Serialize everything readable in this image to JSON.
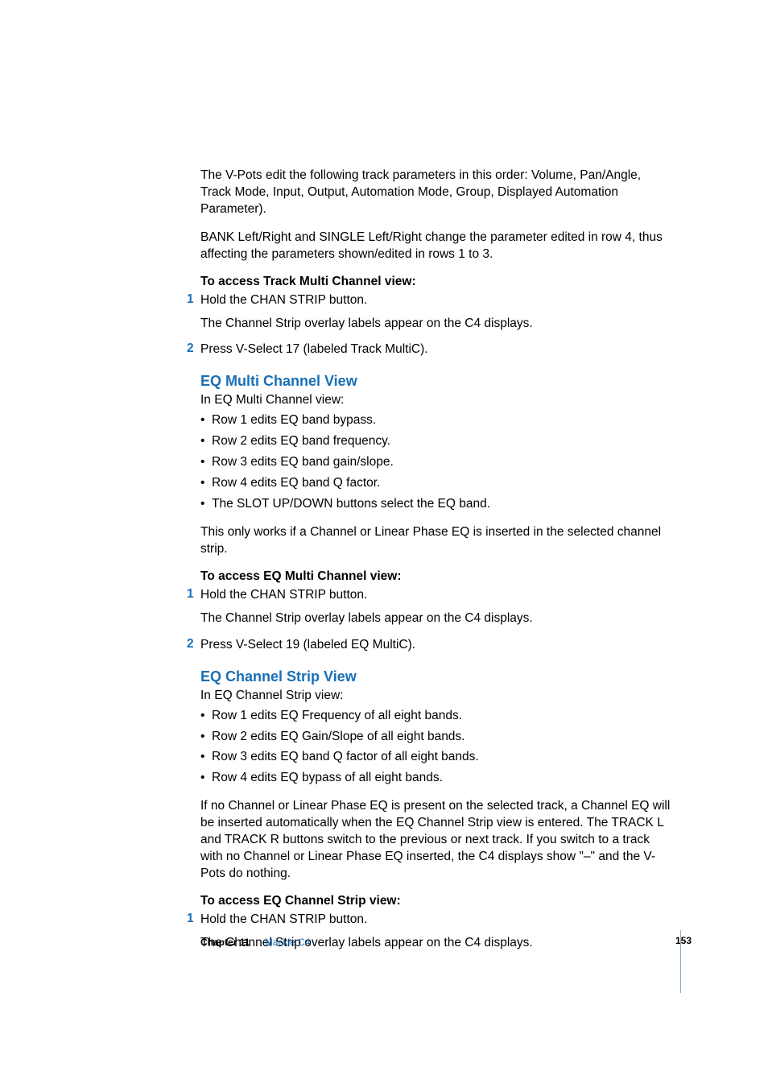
{
  "colors": {
    "accent": "#1a6fb6",
    "text": "#000000",
    "rule": "#8aa9c7",
    "background": "#ffffff"
  },
  "typography": {
    "body_fontsize_pt": 11,
    "heading_fontsize_pt": 14,
    "footer_fontsize_pt": 9,
    "font_family": "Myriad Pro / Helvetica Neue"
  },
  "paragraphs": {
    "p1": "The V-Pots edit the following track parameters in this order:  Volume, Pan/Angle, Track Mode, Input, Output, Automation Mode, Group, Displayed Automation Parameter).",
    "p2": "BANK Left/Right and SINGLE Left/Right change the parameter edited in row 4, thus affecting the parameters shown/edited in rows 1 to 3."
  },
  "section_track": {
    "heading": "To access Track Multi Channel view:",
    "steps": [
      {
        "num": "1",
        "text": "Hold the CHAN STRIP button.",
        "desc": "The Channel Strip overlay labels appear on the C4 displays."
      },
      {
        "num": "2",
        "text": "Press V-Select 17 (labeled Track MultiC)."
      }
    ]
  },
  "section_eqmulti": {
    "title": "EQ Multi Channel View",
    "intro": "In EQ Multi Channel view:",
    "bullets": [
      "Row 1 edits EQ band bypass.",
      "Row 2 edits EQ band frequency.",
      "Row 3 edits EQ band gain/slope.",
      "Row 4 edits EQ band Q factor.",
      "The SLOT UP/DOWN buttons select the EQ band."
    ],
    "note": "This only works if a Channel or Linear Phase EQ is inserted in the selected channel strip.",
    "access_heading": "To access EQ Multi Channel view:",
    "steps": [
      {
        "num": "1",
        "text": "Hold the CHAN STRIP button.",
        "desc": "The Channel Strip overlay labels appear on the C4 displays."
      },
      {
        "num": "2",
        "text": "Press V-Select 19 (labeled EQ MultiC)."
      }
    ]
  },
  "section_eqstrip": {
    "title": "EQ Channel Strip View",
    "intro": "In EQ Channel Strip view:",
    "bullets": [
      "Row 1 edits EQ Frequency of all eight bands.",
      "Row 2 edits EQ Gain/Slope of all eight bands.",
      "Row 3 edits EQ band Q factor of all eight bands.",
      "Row 4 edits EQ bypass of all eight bands."
    ],
    "note": "If no Channel or Linear Phase EQ is present on the selected track, a Channel EQ will be inserted automatically when the EQ Channel Strip view is entered. The TRACK L and TRACK R buttons switch to the previous or next track. If you switch to a track with no Channel or Linear Phase EQ inserted, the C4 displays show \"–\" and the V-Pots do nothing.",
    "access_heading": "To access EQ Channel Strip view:",
    "steps": [
      {
        "num": "1",
        "text": "Hold the CHAN STRIP button.",
        "desc": "The Channel Strip overlay labels appear on the C4 displays."
      }
    ]
  },
  "footer": {
    "chapter": "Chapter 11",
    "title": "Mackie C4",
    "page": "153"
  }
}
